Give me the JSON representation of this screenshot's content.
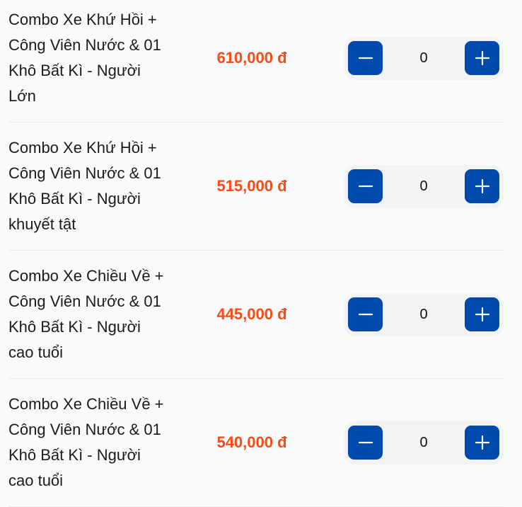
{
  "accent_color": "#004aad",
  "price_color": "#ff4a12",
  "items": [
    {
      "name": "Combo Xe Khứ Hồi + Công Viên Nước & 01 Khô Bất Kì - Người Lớn",
      "price": "610,000 đ",
      "quantity": "0"
    },
    {
      "name": "Combo Xe Khứ Hồi + Công Viên Nước & 01 Khô Bất Kì - Người khuyết tật",
      "price": "515,000 đ",
      "quantity": "0"
    },
    {
      "name": "Combo Xe Chiều Về + Công Viên Nước & 01 Khô Bất Kì - Người cao tuổi",
      "price": "445,000 đ",
      "quantity": "0"
    },
    {
      "name": "Combo Xe Chiều Về + Công Viên Nước & 01 Khô Bất Kì - Người cao tuổi",
      "price": "540,000 đ",
      "quantity": "0"
    }
  ],
  "icons": {
    "decrease": "minus-icon",
    "increase": "plus-icon"
  }
}
